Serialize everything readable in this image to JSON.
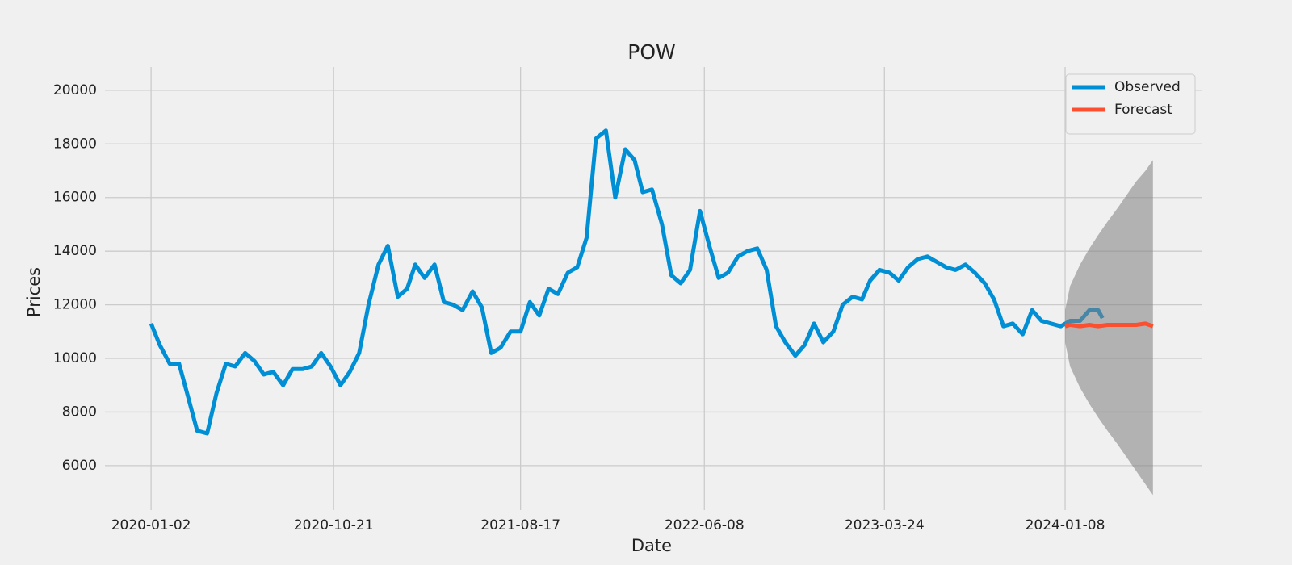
{
  "chart_data": {
    "type": "line",
    "title": "POW",
    "x_label": "Date",
    "y_label": "Prices",
    "xlim": [
      "2019-10-20",
      "2024-08-14"
    ],
    "xticks": [
      "2020-01-02",
      "2020-10-21",
      "2021-08-17",
      "2022-06-08",
      "2023-03-24",
      "2024-01-08"
    ],
    "ylim": [
      4340,
      20870
    ],
    "yticks": [
      6000,
      8000,
      10000,
      12000,
      14000,
      16000,
      18000,
      20000
    ],
    "grid": true,
    "legend": "upper right",
    "series": [
      {
        "name": "Observed",
        "color": "#008fd5",
        "x": [
          "2020-01-02",
          "2020-01-16",
          "2020-02-01",
          "2020-02-16",
          "2020-03-01",
          "2020-03-16",
          "2020-04-01",
          "2020-04-16",
          "2020-05-01",
          "2020-05-16",
          "2020-06-01",
          "2020-06-16",
          "2020-07-01",
          "2020-07-16",
          "2020-08-01",
          "2020-08-16",
          "2020-09-01",
          "2020-09-16",
          "2020-10-01",
          "2020-10-16",
          "2020-11-01",
          "2020-11-16",
          "2020-12-01",
          "2020-12-16",
          "2021-01-01",
          "2021-01-16",
          "2021-02-01",
          "2021-02-16",
          "2021-03-01",
          "2021-03-16",
          "2021-04-01",
          "2021-04-16",
          "2021-05-01",
          "2021-05-16",
          "2021-06-01",
          "2021-06-16",
          "2021-07-01",
          "2021-07-16",
          "2021-08-01",
          "2021-08-17",
          "2021-09-01",
          "2021-09-16",
          "2021-10-01",
          "2021-10-16",
          "2021-11-01",
          "2021-11-16",
          "2021-12-01",
          "2021-12-16",
          "2022-01-01",
          "2022-01-16",
          "2022-02-01",
          "2022-02-16",
          "2022-03-01",
          "2022-03-16",
          "2022-04-01",
          "2022-04-16",
          "2022-05-01",
          "2022-05-16",
          "2022-06-01",
          "2022-06-16",
          "2022-07-01",
          "2022-07-16",
          "2022-08-01",
          "2022-08-16",
          "2022-09-01",
          "2022-09-16",
          "2022-10-01",
          "2022-10-16",
          "2022-11-01",
          "2022-11-16",
          "2022-12-01",
          "2022-12-16",
          "2023-01-01",
          "2023-01-16",
          "2023-02-01",
          "2023-02-16",
          "2023-03-01",
          "2023-03-16",
          "2023-04-01",
          "2023-04-16",
          "2023-05-01",
          "2023-05-16",
          "2023-06-01",
          "2023-06-16",
          "2023-07-01",
          "2023-07-16",
          "2023-08-01",
          "2023-08-16",
          "2023-09-01",
          "2023-09-16",
          "2023-10-01",
          "2023-10-16",
          "2023-11-01",
          "2023-11-16",
          "2023-12-01",
          "2023-12-16",
          "2024-01-01",
          "2024-01-16",
          "2024-02-01",
          "2024-02-16",
          "2024-03-01",
          "2024-03-08"
        ],
        "values": [
          11300,
          10500,
          9800,
          9800,
          8600,
          7300,
          7200,
          8700,
          9800,
          9700,
          10200,
          9900,
          9400,
          9500,
          9000,
          9600,
          9600,
          9700,
          10200,
          9700,
          9000,
          9500,
          10200,
          12000,
          13500,
          14200,
          12300,
          12600,
          13500,
          13000,
          13500,
          12100,
          12000,
          11800,
          12500,
          11900,
          10200,
          10400,
          11000,
          11000,
          12100,
          11600,
          12600,
          12400,
          13200,
          13400,
          14500,
          18200,
          18500,
          16000,
          17800,
          17400,
          16200,
          16300,
          15000,
          13100,
          12800,
          13300,
          15500,
          14200,
          13000,
          13200,
          13800,
          14000,
          14100,
          13300,
          11200,
          10600,
          10100,
          10500,
          11300,
          10600,
          11000,
          12000,
          12300,
          12200,
          12900,
          13300,
          13200,
          12900,
          13400,
          13700,
          13800,
          13600,
          13400,
          13300,
          13500,
          13200,
          12800,
          12200,
          11200,
          11300,
          10900,
          11800,
          11400,
          11300,
          11200,
          11400,
          11400,
          11800,
          11800,
          11500
        ]
      },
      {
        "name": "Forecast",
        "color": "#fc4f30",
        "band_color": "#808080",
        "x": [
          "2024-01-08",
          "2024-01-16",
          "2024-02-01",
          "2024-02-16",
          "2024-03-01",
          "2024-03-16",
          "2024-04-01",
          "2024-04-16",
          "2024-05-01",
          "2024-05-16",
          "2024-05-28"
        ],
        "values": [
          11200,
          11250,
          11200,
          11250,
          11200,
          11250,
          11250,
          11250,
          11250,
          11300,
          11200
        ],
        "lower": [
          10600,
          9700,
          8900,
          8300,
          7800,
          7300,
          6800,
          6300,
          5800,
          5300,
          4900
        ],
        "upper": [
          11800,
          12700,
          13500,
          14100,
          14600,
          15100,
          15600,
          16100,
          16600,
          17000,
          17400
        ]
      }
    ]
  }
}
